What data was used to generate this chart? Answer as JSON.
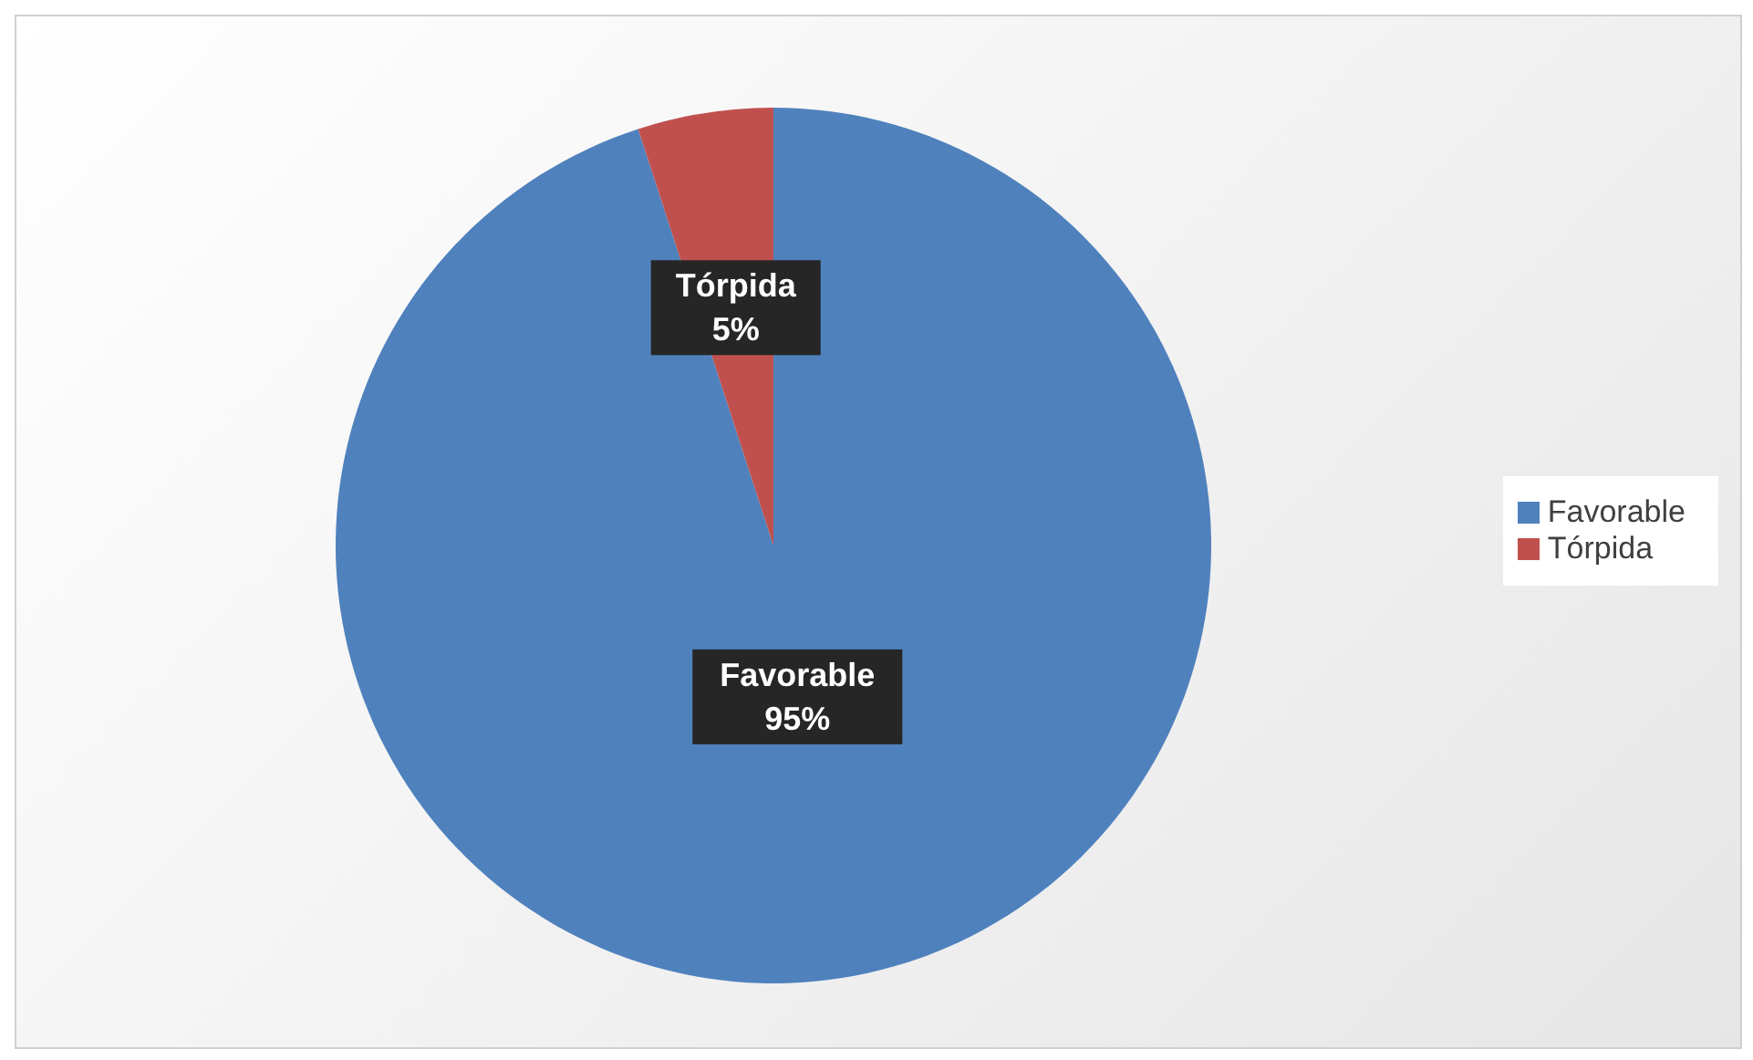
{
  "chart_data": {
    "type": "pie",
    "categories": [
      "Favorable",
      "Tórpida"
    ],
    "values": [
      95,
      5
    ],
    "colors": [
      "#4f81bd",
      "#c0504d"
    ],
    "value_labels": [
      "95%",
      "5%"
    ],
    "legend": "right"
  }
}
